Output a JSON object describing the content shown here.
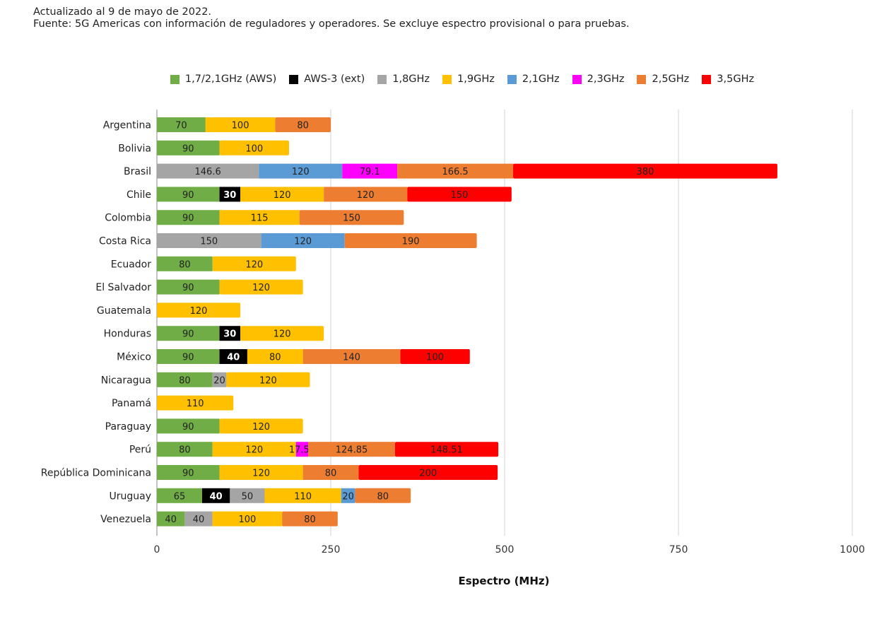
{
  "notes": {
    "line1": "Actualizado al 9 de mayo de 2022.",
    "line2": "Fuente: 5G Americas con información de reguladores y operadores. Se excluye espectro provisional o para pruebas."
  },
  "chart_data": {
    "type": "bar",
    "orientation": "horizontal",
    "stacked": true,
    "title": "",
    "xlabel": "Espectro (MHz)",
    "ylabel": "",
    "xlim": [
      0,
      1000
    ],
    "xticks": [
      0,
      250,
      500,
      750,
      1000
    ],
    "grid": true,
    "legend_position": "top",
    "categories": [
      "Argentina",
      "Bolivia",
      "Brasil",
      "Chile",
      "Colombia",
      "Costa Rica",
      "Ecuador",
      "El Salvador",
      "Guatemala",
      "Honduras",
      "México",
      "Nicaragua",
      "Panamá",
      "Paraguay",
      "Perú",
      "República Dominicana",
      "Uruguay",
      "Venezuela"
    ],
    "series": [
      {
        "name": "1,7/2,1GHz (AWS)",
        "color": "#70ad47",
        "label_color": "#222222",
        "label_bold": false,
        "values": [
          70,
          90,
          null,
          90,
          90,
          null,
          80,
          90,
          null,
          90,
          90,
          80,
          null,
          90,
          80,
          90,
          65,
          40
        ],
        "labels": [
          "70",
          "90",
          "",
          "90",
          "90",
          "",
          "80",
          "90",
          "",
          "90",
          "90",
          "80",
          "",
          "90",
          "80",
          "90",
          "65",
          "40"
        ]
      },
      {
        "name": "AWS-3 (ext)",
        "color": "#000000",
        "label_color": "#ffffff",
        "label_bold": true,
        "values": [
          null,
          null,
          null,
          30,
          null,
          null,
          null,
          null,
          null,
          30,
          40,
          null,
          null,
          null,
          null,
          null,
          40,
          null
        ],
        "labels": [
          "",
          "",
          "",
          "30",
          "",
          "",
          "",
          "",
          "",
          "30",
          "40",
          "",
          "",
          "",
          "",
          "",
          "40",
          ""
        ]
      },
      {
        "name": "1,8GHz",
        "color": "#a5a5a5",
        "label_color": "#222222",
        "label_bold": false,
        "values": [
          null,
          null,
          146.6,
          null,
          null,
          150,
          null,
          null,
          null,
          null,
          null,
          20,
          null,
          null,
          null,
          null,
          50,
          40
        ],
        "labels": [
          "",
          "",
          "146.6",
          "",
          "",
          "150",
          "",
          "",
          "",
          "",
          "",
          "20",
          "",
          "",
          "",
          "",
          "50",
          "40"
        ]
      },
      {
        "name": "1,9GHz",
        "color": "#ffc000",
        "label_color": "#222222",
        "label_bold": false,
        "values": [
          100,
          100,
          null,
          120,
          115,
          null,
          120,
          120,
          120,
          120,
          80,
          120,
          110,
          120,
          120,
          120,
          110,
          100
        ],
        "labels": [
          "100",
          "100",
          "",
          "120",
          "115",
          "",
          "120",
          "120",
          "120",
          "120",
          "80",
          "120",
          "110",
          "120",
          "120",
          "120",
          "110",
          "100"
        ]
      },
      {
        "name": "2,1GHz",
        "color": "#5b9bd5",
        "label_color": "#222222",
        "label_bold": false,
        "values": [
          null,
          null,
          120,
          null,
          null,
          120,
          null,
          null,
          null,
          null,
          null,
          null,
          null,
          null,
          null,
          null,
          20,
          null
        ],
        "labels": [
          "",
          "",
          "120",
          "",
          "",
          "120",
          "",
          "",
          "",
          "",
          "",
          "",
          "",
          "",
          "",
          "",
          "20",
          ""
        ]
      },
      {
        "name": "2,3GHz",
        "color": "#ff00ff",
        "label_color": "#222222",
        "label_bold": false,
        "values": [
          null,
          null,
          79.1,
          null,
          null,
          null,
          null,
          null,
          null,
          null,
          null,
          null,
          null,
          null,
          17.58,
          null,
          null,
          null
        ],
        "labels": [
          "",
          "",
          "79.1",
          "",
          "",
          "",
          "",
          "",
          "",
          "",
          "",
          "",
          "",
          "",
          "17.58",
          "",
          "",
          ""
        ]
      },
      {
        "name": "2,5GHz",
        "color": "#ed7d31",
        "label_color": "#222222",
        "label_bold": false,
        "values": [
          80,
          null,
          166.5,
          120,
          150,
          190,
          null,
          null,
          null,
          null,
          140,
          null,
          null,
          null,
          124.85,
          80,
          80,
          80
        ],
        "labels": [
          "80",
          "",
          "166.5",
          "120",
          "150",
          "190",
          "",
          "",
          "",
          "",
          "140",
          "",
          "",
          "",
          "124.85",
          "80",
          "80",
          "80"
        ]
      },
      {
        "name": "3,5GHz",
        "color": "#ff0000",
        "label_color": "#222222",
        "label_bold": false,
        "values": [
          null,
          null,
          380,
          150,
          null,
          null,
          null,
          null,
          null,
          null,
          100,
          null,
          null,
          null,
          148.51,
          200,
          null,
          null
        ],
        "labels": [
          "",
          "",
          "380",
          "150",
          "",
          "",
          "",
          "",
          "",
          "",
          "100",
          "",
          "",
          "",
          "148.51",
          "200",
          "",
          ""
        ]
      }
    ]
  }
}
